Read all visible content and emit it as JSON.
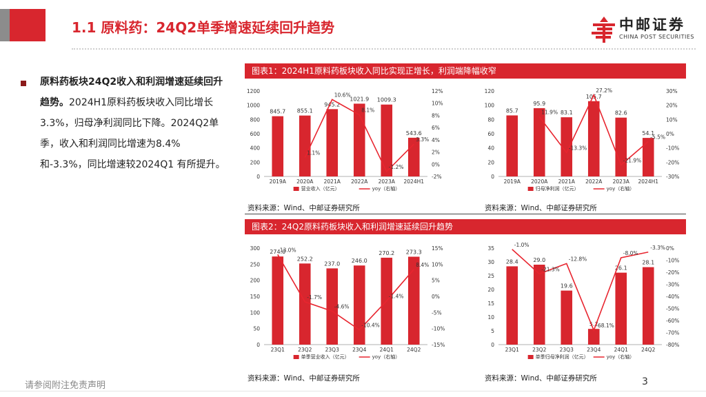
{
  "header": {
    "title": "1.1 原料药：24Q2单季增速延续回升趋势",
    "logo_name": "中邮证券",
    "logo_sub": "CHINA POST SECURITIES"
  },
  "left_panel": {
    "bold_text": "原料药板块24Q2收入和利润增速延续回升趋势。",
    "body_text": "2024H1原料药板块收入同比增长3.3%，归母净利润同比下降。2024Q2单季，收入和利润同比增速为8.4%和-3.3%，同比增速较2024Q1 有所提升。"
  },
  "figure1_title": "图表1：2024H1原料药板块收入同比实现正增长，利润端降幅收窄",
  "figure2_title": "图表2：24Q2原料药板块收入和利润增速延续回升趋势",
  "sources": [
    "资料来源：Wind、中邮证券研究所",
    "资料来源：Wind、中邮证券研究所",
    "资料来源：Wind、中邮证券研究所",
    "资料来源：Wind、中邮证券研究所"
  ],
  "footer": {
    "disclaimer": "请参阅附注免责声明",
    "page": "3"
  },
  "colors": {
    "bar": "#d8262e",
    "line": "#e8252f",
    "accent": "#d8262e"
  },
  "chart_data": [
    {
      "type": "bar",
      "categories": [
        "2019A",
        "2020A",
        "2021A",
        "2022A",
        "2023A",
        "2024H1"
      ],
      "series": [
        {
          "name": "营业收入（亿元）",
          "values": [
            845.7,
            855.1,
            945.2,
            1021.9,
            1009.3,
            543.6
          ],
          "axis": "left"
        },
        {
          "name": "yoy（右轴）",
          "type": "line",
          "values": [
            null,
            1.1,
            10.6,
            8.1,
            -1.2,
            3.3
          ],
          "axis": "right"
        }
      ],
      "ylim": [
        0,
        1200
      ],
      "yticks": [
        0,
        200,
        400,
        600,
        800,
        1000,
        1200
      ],
      "y2lim": [
        -2,
        12
      ],
      "y2ticks": [
        "-2%",
        "0%",
        "2%",
        "4%",
        "6%",
        "8%",
        "10%",
        "12%"
      ]
    },
    {
      "type": "bar",
      "categories": [
        "2019A",
        "2020A",
        "2021A",
        "2022A",
        "2023A",
        "2024H1"
      ],
      "series": [
        {
          "name": "归母净利润（亿元）",
          "values": [
            85.7,
            95.9,
            83.1,
            105.7,
            82.6,
            54.1
          ],
          "axis": "left"
        },
        {
          "name": "yoy（右轴）",
          "type": "line",
          "values": [
            null,
            11.9,
            -13.3,
            27.2,
            -21.9,
            -5.5
          ],
          "axis": "right"
        }
      ],
      "ylim": [
        0,
        120
      ],
      "yticks": [
        0,
        20,
        40,
        60,
        80,
        100,
        120
      ],
      "y2lim": [
        -30,
        30
      ],
      "y2ticks": [
        "-30%",
        "-20%",
        "-10%",
        "0%",
        "10%",
        "20%",
        "30%"
      ]
    },
    {
      "type": "bar",
      "categories": [
        "23Q1",
        "23Q2",
        "23Q3",
        "23Q4",
        "24Q1",
        "24Q2"
      ],
      "series": [
        {
          "name": "单季营业收入（亿元）",
          "values": [
            274.0,
            252.2,
            237.0,
            246.0,
            270.2,
            273.3
          ],
          "axis": "left"
        },
        {
          "name": "yoy（右轴）",
          "type": "line",
          "values": [
            13.0,
            -1.7,
            -4.6,
            -10.4,
            -1.4,
            8.4
          ],
          "axis": "right"
        }
      ],
      "ylim": [
        0,
        300
      ],
      "yticks": [
        0,
        50,
        100,
        150,
        200,
        250,
        300
      ],
      "y2lim": [
        -15,
        15
      ],
      "y2ticks": [
        "-15%",
        "-10%",
        "-5%",
        "0%",
        "5%",
        "10%",
        "15%"
      ]
    },
    {
      "type": "bar",
      "categories": [
        "23Q1",
        "23Q2",
        "23Q3",
        "23Q4",
        "24Q1",
        "24Q2"
      ],
      "series": [
        {
          "name": "单季归母净利润（亿元）",
          "values": [
            28.4,
            29.0,
            19.6,
            5.7,
            26.1,
            28.1
          ],
          "axis": "left"
        },
        {
          "name": "yoy（右轴）",
          "type": "line",
          "values": [
            -1.0,
            -21.3,
            -12.8,
            -68.1,
            -8.0,
            -3.3
          ],
          "axis": "right"
        }
      ],
      "ylim": [
        0,
        35
      ],
      "yticks": [
        0,
        5,
        10,
        15,
        20,
        25,
        30,
        35
      ],
      "y2lim": [
        -80,
        0
      ],
      "y2ticks": [
        "-80%",
        "-70%",
        "-60%",
        "-50%",
        "-40%",
        "-30%",
        "-20%",
        "-10%",
        "0%"
      ]
    }
  ]
}
